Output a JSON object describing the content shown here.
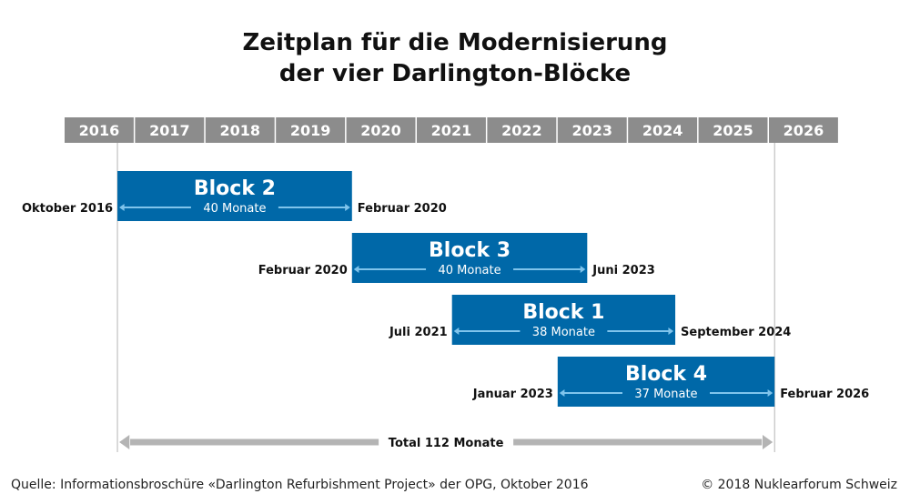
{
  "title_line1": "Zeitplan für die Modernisierung",
  "title_line2": "der vier Darlington-Blöcke",
  "source": "Quelle: Informationsbroschüre «Darlington Refurbishment Project» der OPG, Oktober 2016",
  "copyright": "© 2018 Nuklearforum Schweiz",
  "colors": {
    "bar": "#0068a8",
    "arrow_light": "#7fc4ec",
    "header_bg": "#8c8c8c",
    "total_arrow": "#b4b4b4",
    "guide": "#b4b4b4"
  },
  "chart_data": {
    "type": "gantt",
    "years": [
      "2016",
      "2017",
      "2018",
      "2019",
      "2020",
      "2021",
      "2022",
      "2023",
      "2024",
      "2025",
      "2026"
    ],
    "tasks": [
      {
        "name": "Block 2",
        "start": 2016.75,
        "end": 2020.08,
        "start_label": "Oktober 2016",
        "end_label": "Februar 2020",
        "duration_label": "40 Monate"
      },
      {
        "name": "Block 3",
        "start": 2020.08,
        "end": 2023.42,
        "start_label": "Februar 2020",
        "end_label": "Juni 2023",
        "duration_label": "40 Monate"
      },
      {
        "name": "Block 1",
        "start": 2021.5,
        "end": 2024.67,
        "start_label": "Juli 2021",
        "end_label": "September 2024",
        "duration_label": "38 Monate"
      },
      {
        "name": "Block 4",
        "start": 2023.0,
        "end": 2026.08,
        "start_label": "Januar 2023",
        "end_label": "Februar 2026",
        "duration_label": "37 Monate"
      }
    ],
    "total": {
      "start": 2016.75,
      "end": 2026.08,
      "label": "Total 112 Monate"
    }
  }
}
